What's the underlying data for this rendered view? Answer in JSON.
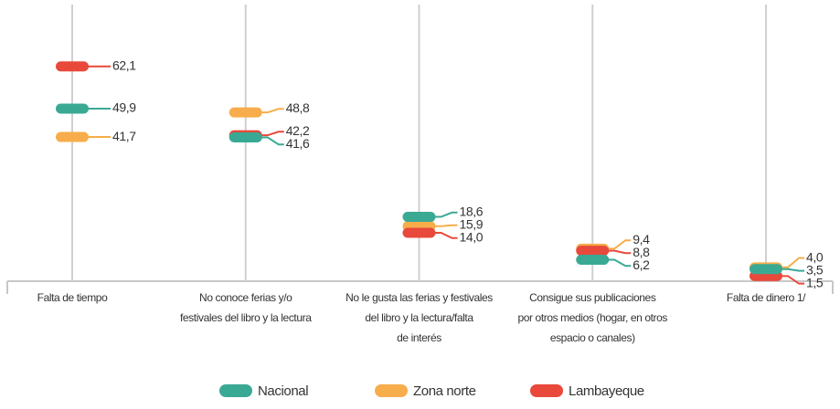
{
  "chart_data": {
    "type": "dot",
    "categories": [
      [
        "Falta de tiempo"
      ],
      [
        "No conoce ferias y/o",
        "festivales del libro y la lectura"
      ],
      [
        "No le gusta las ferias y festivales",
        "del libro y la lectura/falta",
        "de interés"
      ],
      [
        "Consigue sus publicaciones",
        "por otros medios (hogar, en otros",
        "espacio o canales)"
      ],
      [
        "Falta de dinero 1/"
      ]
    ],
    "series": [
      {
        "name": "Nacional",
        "color": "#3aa994",
        "values": [
          49.9,
          41.6,
          18.6,
          6.2,
          3.5
        ],
        "value_labels": [
          "49,9",
          "41,6",
          "18,6",
          "6,2",
          "3,5"
        ]
      },
      {
        "name": "Zona norte",
        "color": "#f7ad4b",
        "values": [
          41.7,
          48.8,
          15.9,
          9.4,
          4.0
        ],
        "value_labels": [
          "41,7",
          "48,8",
          "15,9",
          "9,4",
          "4,0"
        ]
      },
      {
        "name": "Lambayeque",
        "color": "#e8493b",
        "values": [
          62.1,
          42.2,
          14.0,
          8.8,
          1.5
        ],
        "value_labels": [
          "62,1",
          "42,2",
          "14,0",
          "8,8",
          "1,5"
        ]
      }
    ],
    "ylim": [
      0,
      80
    ],
    "legend": "bottom"
  }
}
